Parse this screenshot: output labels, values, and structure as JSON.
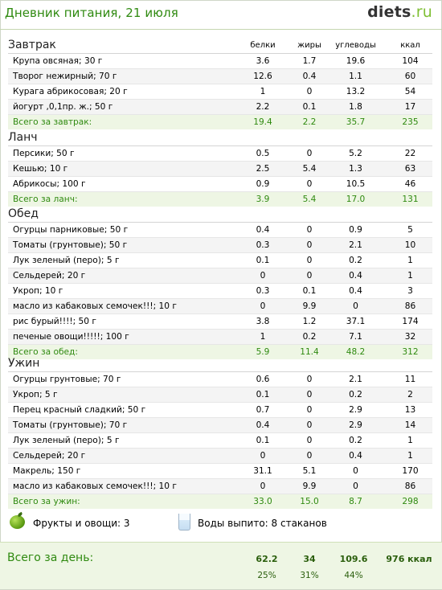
{
  "header": {
    "title": "Дневник питания, 21 июля",
    "logo_main": "diets",
    "logo_tld": ".ru"
  },
  "columns": {
    "protein": "белки",
    "fat": "жиры",
    "carbs": "углеводы",
    "kcal": "ккал"
  },
  "sections": [
    {
      "title": "Завтрак",
      "rows": [
        {
          "name": "Крупа овсяная; 30 г",
          "protein": "3.6",
          "fat": "1.7",
          "carbs": "19.6",
          "kcal": "104"
        },
        {
          "name": "Творог нежирный; 70 г",
          "protein": "12.6",
          "fat": "0.4",
          "carbs": "1.1",
          "kcal": "60"
        },
        {
          "name": "Курага абрикосовая; 20 г",
          "protein": "1",
          "fat": "0",
          "carbs": "13.2",
          "kcal": "54"
        },
        {
          "name": "йогурт ,0,1пр. ж.; 50 г",
          "protein": "2.2",
          "fat": "0.1",
          "carbs": "1.8",
          "kcal": "17"
        }
      ],
      "total": {
        "name": "Всего за завтрак:",
        "protein": "19.4",
        "fat": "2.2",
        "carbs": "35.7",
        "kcal": "235"
      }
    },
    {
      "title": "Ланч",
      "rows": [
        {
          "name": "Персики; 50 г",
          "protein": "0.5",
          "fat": "0",
          "carbs": "5.2",
          "kcal": "22"
        },
        {
          "name": "Кешью; 10 г",
          "protein": "2.5",
          "fat": "5.4",
          "carbs": "1.3",
          "kcal": "63"
        },
        {
          "name": "Абрикосы; 100 г",
          "protein": "0.9",
          "fat": "0",
          "carbs": "10.5",
          "kcal": "46"
        }
      ],
      "total": {
        "name": "Всего за ланч:",
        "protein": "3.9",
        "fat": "5.4",
        "carbs": "17.0",
        "kcal": "131"
      }
    },
    {
      "title": "Обед",
      "rows": [
        {
          "name": "Огурцы парниковые; 50 г",
          "protein": "0.4",
          "fat": "0",
          "carbs": "0.9",
          "kcal": "5"
        },
        {
          "name": "Томаты (грунтовые); 50 г",
          "protein": "0.3",
          "fat": "0",
          "carbs": "2.1",
          "kcal": "10"
        },
        {
          "name": "Лук зеленый (перо); 5 г",
          "protein": "0.1",
          "fat": "0",
          "carbs": "0.2",
          "kcal": "1"
        },
        {
          "name": "Сельдерей; 20 г",
          "protein": "0",
          "fat": "0",
          "carbs": "0.4",
          "kcal": "1"
        },
        {
          "name": "Укроп; 10 г",
          "protein": "0.3",
          "fat": "0.1",
          "carbs": "0.4",
          "kcal": "3"
        },
        {
          "name": "масло из кабаковых семочек!!!; 10 г",
          "protein": "0",
          "fat": "9.9",
          "carbs": "0",
          "kcal": "86"
        },
        {
          "name": "рис бурый!!!!; 50 г",
          "protein": "3.8",
          "fat": "1.2",
          "carbs": "37.1",
          "kcal": "174"
        },
        {
          "name": "печеные  овощи!!!!!; 100 г",
          "protein": "1",
          "fat": "0.2",
          "carbs": "7.1",
          "kcal": "32"
        }
      ],
      "total": {
        "name": "Всего за обед:",
        "protein": "5.9",
        "fat": "11.4",
        "carbs": "48.2",
        "kcal": "312"
      }
    },
    {
      "title": "Ужин",
      "rows": [
        {
          "name": "Огурцы грунтовые; 70 г",
          "protein": "0.6",
          "fat": "0",
          "carbs": "2.1",
          "kcal": "11"
        },
        {
          "name": "Укроп; 5 г",
          "protein": "0.1",
          "fat": "0",
          "carbs": "0.2",
          "kcal": "2"
        },
        {
          "name": "Перец красный сладкий; 50 г",
          "protein": "0.7",
          "fat": "0",
          "carbs": "2.9",
          "kcal": "13"
        },
        {
          "name": "Томаты (грунтовые); 70 г",
          "protein": "0.4",
          "fat": "0",
          "carbs": "2.9",
          "kcal": "14"
        },
        {
          "name": "Лук зеленый (перо); 5 г",
          "protein": "0.1",
          "fat": "0",
          "carbs": "0.2",
          "kcal": "1"
        },
        {
          "name": "Сельдерей; 20 г",
          "protein": "0",
          "fat": "0",
          "carbs": "0.4",
          "kcal": "1"
        },
        {
          "name": "Макрель; 150 г",
          "protein": "31.1",
          "fat": "5.1",
          "carbs": "0",
          "kcal": "170"
        },
        {
          "name": "масло из кабаковых семочек!!!; 10 г",
          "protein": "0",
          "fat": "9.9",
          "carbs": "0",
          "kcal": "86"
        }
      ],
      "total": {
        "name": "Всего за ужин:",
        "protein": "33.0",
        "fat": "15.0",
        "carbs": "8.7",
        "kcal": "298"
      }
    }
  ],
  "extras": {
    "fruits": "Фрукты и овощи: 3",
    "water": "Воды выпито: 8 стаканов"
  },
  "day_total": {
    "title": "Всего за день:",
    "protein": "62.2",
    "fat": "34",
    "carbs": "109.6",
    "kcal": "976 ккал",
    "protein_pct": "25%",
    "fat_pct": "31%",
    "carbs_pct": "44%"
  }
}
